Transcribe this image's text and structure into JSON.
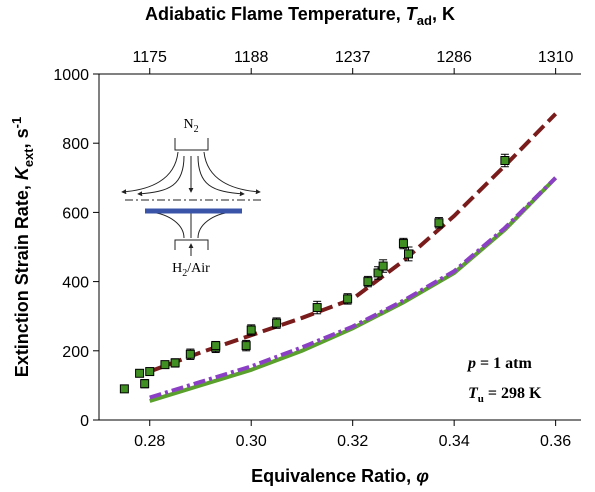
{
  "chart_data": {
    "type": "scatter",
    "x2_label": [
      "Adiabatic Flame Temperature, ",
      "T",
      "ad",
      ", K"
    ],
    "x_label": [
      "Equivalence Ratio, ",
      "φ"
    ],
    "y_label": [
      "Extinction Strain Rate, ",
      "K",
      "ext",
      ", s",
      "-1"
    ],
    "xlim": [
      0.27,
      0.365
    ],
    "ylim": [
      0,
      1000
    ],
    "xticks": [
      0.28,
      {
        "value": 0.3,
        "label": "0.30"
      },
      0.32,
      0.34,
      0.36
    ],
    "yticks": [
      0,
      200,
      400,
      600,
      800,
      1000
    ],
    "x2ticks": [
      {
        "value": 0.28,
        "label": "1175"
      },
      {
        "value": 0.3,
        "label": "1188"
      },
      {
        "value": 0.32,
        "label": "1237"
      },
      {
        "value": 0.34,
        "label": "1286"
      },
      {
        "value": 0.36,
        "label": "1310"
      }
    ],
    "series": [
      {
        "type": "scatter",
        "color": "#3f8f22",
        "x": [
          0.275,
          0.278,
          0.279,
          0.28,
          0.283,
          0.285,
          0.288,
          0.293,
          0.293,
          0.299,
          0.3,
          0.305,
          0.313,
          0.319,
          0.323,
          0.325,
          0.326,
          0.33,
          0.331,
          0.337,
          0.35
        ],
        "values": [
          90,
          135,
          105,
          140,
          160,
          165,
          190,
          210,
          215,
          215,
          260,
          280,
          325,
          350,
          400,
          425,
          445,
          510,
          480,
          570,
          750
        ],
        "errors": [
          8,
          10,
          12,
          10,
          10,
          12,
          15,
          15,
          12,
          15,
          15,
          15,
          18,
          15,
          15,
          18,
          18,
          15,
          20,
          15,
          18
        ]
      },
      {
        "type": "line",
        "color": "#7a1c1c",
        "style": "dashed",
        "x": [
          0.28,
          0.29,
          0.3,
          0.31,
          0.32,
          0.33,
          0.34,
          0.35,
          0.36
        ],
        "values": [
          140,
          195,
          245,
          295,
          350,
          460,
          590,
          735,
          885
        ]
      },
      {
        "type": "line",
        "color": "#5aa02c",
        "style": "solid",
        "x": [
          0.28,
          0.29,
          0.3,
          0.31,
          0.32,
          0.33,
          0.34,
          0.35,
          0.36
        ],
        "values": [
          55,
          100,
          145,
          200,
          265,
          340,
          425,
          550,
          700
        ]
      },
      {
        "type": "line",
        "color": "#8a3fc4",
        "style": "dashdot",
        "x": [
          0.28,
          0.29,
          0.3,
          0.31,
          0.32,
          0.33,
          0.34,
          0.35,
          0.36
        ],
        "values": [
          65,
          110,
          155,
          210,
          270,
          345,
          430,
          555,
          700
        ]
      }
    ],
    "annotations": [
      [
        "p",
        " = 1 atm"
      ],
      [
        "T",
        "u",
        " = 298 K"
      ]
    ]
  },
  "inset": {
    "top_label": [
      "N",
      "2"
    ],
    "bottom_label": [
      "H",
      "2",
      "/Air"
    ]
  }
}
